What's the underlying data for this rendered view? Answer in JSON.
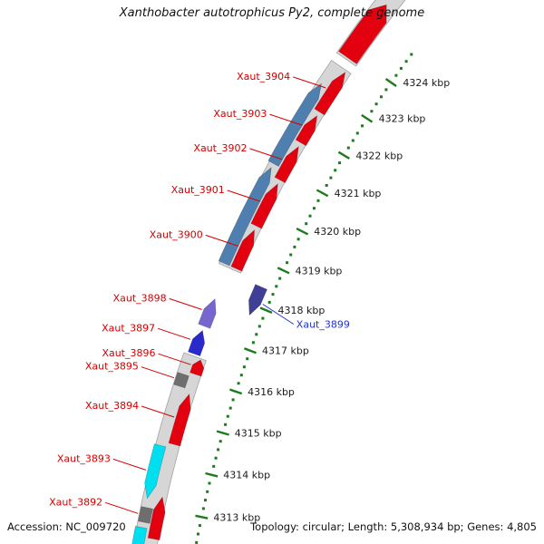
{
  "title": "Xanthobacter autotrophicus Py2, complete genome",
  "footer": {
    "accession": "Accession: NC_009720",
    "summary": "Topology: circular; Length: 5,308,934 bp; Genes: 4,805"
  },
  "chart_data": {
    "type": "genome-map",
    "organism": "Xanthobacter autotrophicus Py2",
    "topology": "circular",
    "genome_length_bp": 5308934,
    "gene_count": 4805,
    "visible_region_kbp": [
      4312,
      4325.5
    ],
    "colors": {
      "track_fill": "#D6D6D6",
      "track_edge": "#A3A3A3",
      "cds_red": "#E3000F",
      "gene_steelblue": "#4E7FAE",
      "background": "#FFFFFF"
    },
    "ruler": {
      "unit": "kbp",
      "ticks": [
        4313,
        4314,
        4315,
        4316,
        4317,
        4318,
        4319,
        4320,
        4321,
        4322,
        4323,
        4324
      ],
      "minor_from": 4312.2,
      "minor_to": 4324.8,
      "minor_step": 0.2,
      "color": "#1C7C1C",
      "label_color": "#1a1a1a"
    },
    "band_segments": [
      [
        4311.6,
        4316.45
      ],
      [
        4318.55,
        4323.65
      ],
      [
        4323.85,
        4325.8
      ]
    ],
    "features": [
      {
        "name": "",
        "start": 4323.9,
        "end": 4325.35,
        "dir": 1,
        "off": 0,
        "w": 24,
        "color": "#E3000F"
      },
      {
        "name": "Xaut_3904",
        "start": 4322.55,
        "end": 4323.6,
        "dir": 1,
        "off": 7,
        "w": 13,
        "color": "#E3000F",
        "label": {
          "side": "left",
          "color": "#D40000"
        }
      },
      {
        "name": "Xaut_3903",
        "start": 4321.75,
        "end": 4322.45,
        "dir": 1,
        "off": 7,
        "w": 13,
        "color": "#E3000F",
        "label": {
          "side": "left",
          "color": "#D40000"
        }
      },
      {
        "name": "Xaut_3902",
        "start": 4320.8,
        "end": 4321.65,
        "dir": 1,
        "off": 7,
        "w": 13,
        "color": "#E3000F",
        "label": {
          "side": "left",
          "color": "#D40000"
        }
      },
      {
        "name": "Xaut_3901",
        "start": 4319.65,
        "end": 4320.7,
        "dir": 1,
        "off": 7,
        "w": 13,
        "color": "#E3000F",
        "label": {
          "side": "left",
          "color": "#D40000"
        }
      },
      {
        "name": "Xaut_3900",
        "start": 4318.6,
        "end": 4319.55,
        "dir": 1,
        "off": 7,
        "w": 13,
        "color": "#E3000F",
        "label": {
          "side": "left",
          "color": "#D40000"
        }
      },
      {
        "name": "",
        "start": 4321.05,
        "end": 4323.1,
        "dir": 1,
        "off": -8,
        "w": 13,
        "color": "#4E7FAE"
      },
      {
        "name": "",
        "start": 4318.6,
        "end": 4320.95,
        "dir": 1,
        "off": -8,
        "w": 13,
        "color": "#4E7FAE"
      },
      {
        "name": "Xaut_3898",
        "start": 4317.15,
        "end": 4317.8,
        "dir": 1,
        "off": -2,
        "w": 14,
        "color": "#7666CE",
        "label": {
          "side": "left",
          "color": "#D40000"
        }
      },
      {
        "name": "Xaut_3897",
        "start": 4316.5,
        "end": 4317.05,
        "dir": 1,
        "off": -2,
        "w": 14,
        "color": "#2A2ACC",
        "label": {
          "side": "left",
          "color": "#D40000"
        }
      },
      {
        "name": "Xaut_3899",
        "start": 4317.75,
        "end": 4318.45,
        "dir": -1,
        "off": 40,
        "w": 14,
        "color": "#3F3F96",
        "label": {
          "side": "right",
          "color": "#2233CC",
          "leader": [
            34,
            22
          ]
        }
      },
      {
        "name": "Xaut_3896",
        "start": 4316.08,
        "end": 4316.42,
        "dir": 1,
        "off": 7,
        "w": 13,
        "color": "#E3000F",
        "label": {
          "side": "left",
          "color": "#D40000"
        }
      },
      {
        "name": "Xaut_3895",
        "start": 4315.72,
        "end": 4316.0,
        "dir": 0,
        "off": -6,
        "w": 13,
        "color": "#6E6E6E",
        "label": {
          "side": "left",
          "color": "#D40000"
        }
      },
      {
        "name": "Xaut_3894",
        "start": 4314.45,
        "end": 4315.62,
        "dir": 1,
        "off": 7,
        "w": 13,
        "color": "#E3000F",
        "label": {
          "side": "left",
          "color": "#D40000"
        }
      },
      {
        "name": "Xaut_3893",
        "start": 4313.15,
        "end": 4314.35,
        "dir": -1,
        "off": -8,
        "w": 13,
        "color": "#00DFEF",
        "label": {
          "side": "left",
          "color": "#D40000"
        }
      },
      {
        "name": "Xaut_3892",
        "start": 4312.62,
        "end": 4312.95,
        "dir": 0,
        "off": -6,
        "w": 13,
        "color": "#6E6E6E",
        "label": {
          "side": "left",
          "color": "#D40000"
        }
      },
      {
        "name": "",
        "start": 4312.3,
        "end": 4313.25,
        "dir": 1,
        "off": 8,
        "w": 13,
        "color": "#E3000F"
      },
      {
        "name": "",
        "start": 4311.7,
        "end": 4312.5,
        "dir": -1,
        "off": -8,
        "w": 13,
        "color": "#00DFEF"
      }
    ]
  }
}
